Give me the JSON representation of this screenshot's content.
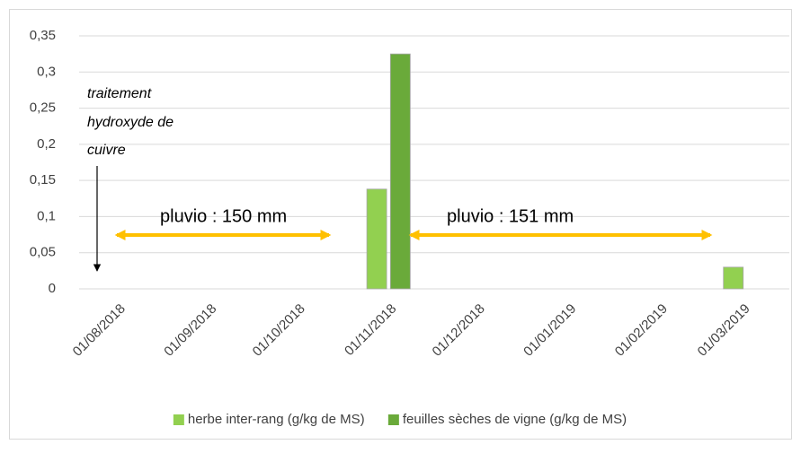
{
  "chart_data": {
    "type": "bar",
    "annotations": [
      "traitement",
      "hydroxyde de",
      "cuivre",
      "pluvio : 150 mm",
      "pluvio : 151 mm"
    ],
    "series": [
      {
        "name": "herbe inter-rang (g/kg de MS)",
        "color": "#92d050",
        "x": [
          "2018-10-26",
          "2019-02-24"
        ],
        "values": [
          0.138,
          0.03
        ]
      },
      {
        "name": "feuilles sèches de vigne (g/kg de MS)",
        "color": "#6aaa3a",
        "x": [
          "2018-11-03"
        ],
        "values": [
          0.325
        ]
      }
    ],
    "xlim": [
      "2018-07-17",
      "2019-03-15"
    ],
    "xticks": [
      {
        "value": "2018-08-01",
        "label": "01/08/2018"
      },
      {
        "value": "2018-09-01",
        "label": "01/09/2018"
      },
      {
        "value": "2018-10-01",
        "label": "01/10/2018"
      },
      {
        "value": "2018-11-01",
        "label": "01/11/2018"
      },
      {
        "value": "2018-12-01",
        "label": "01/12/2018"
      },
      {
        "value": "2019-01-01",
        "label": "01/01/2019"
      },
      {
        "value": "2019-02-01",
        "label": "01/02/2019"
      },
      {
        "value": "2019-03-01",
        "label": "01/03/2019"
      }
    ],
    "ylim": [
      0,
      0.35
    ],
    "yticks": [
      0,
      {
        "value": 0.05,
        "label": "0,05"
      },
      {
        "value": 0.1,
        "label": "0,1"
      },
      {
        "value": 0.15,
        "label": "0,15"
      },
      {
        "value": 0.2,
        "label": "0,2"
      },
      {
        "value": 0.25,
        "label": "0,25"
      },
      {
        "value": 0.3,
        "label": "0,3"
      },
      {
        "value": 0.35,
        "label": "0,35"
      }
    ],
    "grid": true,
    "legend": "bottom"
  }
}
